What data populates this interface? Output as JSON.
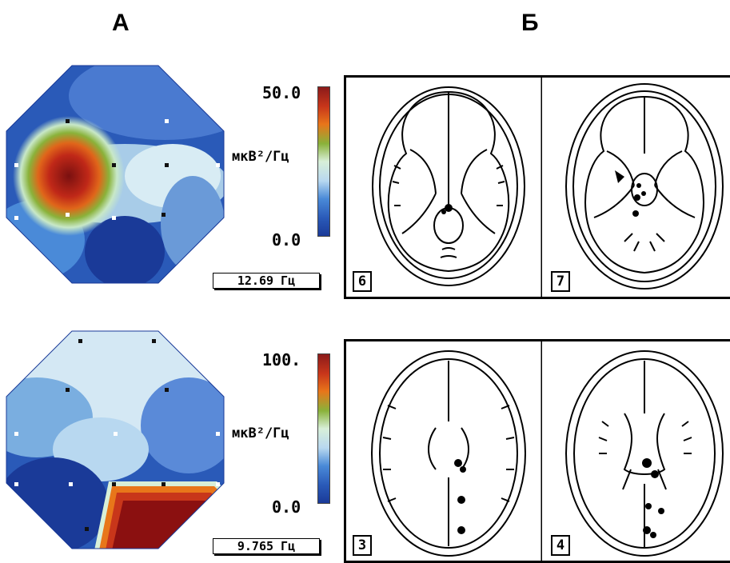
{
  "headers": {
    "left": "А",
    "right": "Б"
  },
  "maps": [
    {
      "scale_max": "50.0",
      "scale_min": "0.0",
      "unit": "мкВ²/Гц",
      "frequency": "12.69 Гц"
    },
    {
      "scale_max": "100.",
      "scale_min": "0.0",
      "unit": "мкВ²/Гц",
      "frequency": "9.765 Гц"
    }
  ],
  "slices": [
    {
      "number": "6"
    },
    {
      "number": "7"
    },
    {
      "number": "3"
    },
    {
      "number": "4"
    }
  ],
  "colorbar": [
    "#8b1a1a",
    "#c8361a",
    "#e8761a",
    "#8ab23a",
    "#d8efd8",
    "#b8d8f0",
    "#4a8ad8",
    "#2a5ab8",
    "#1a3a98"
  ]
}
